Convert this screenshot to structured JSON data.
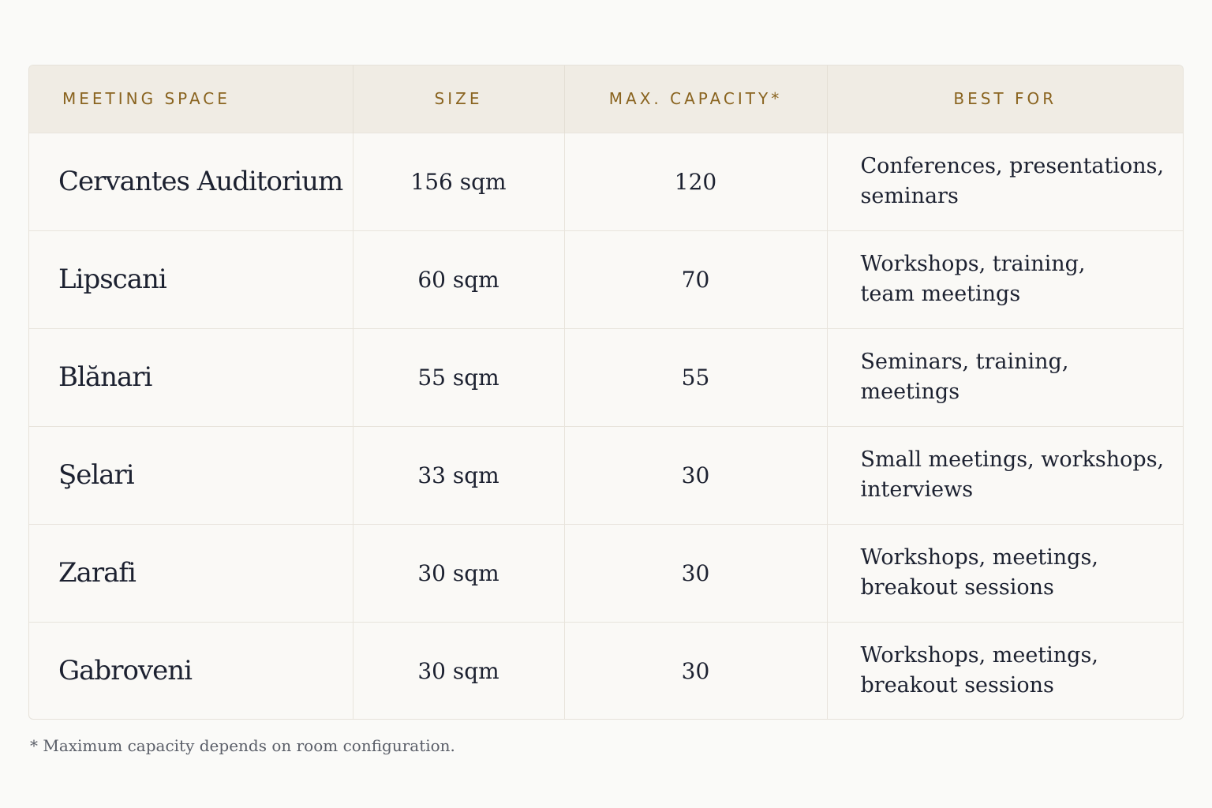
{
  "table": {
    "headers": [
      "MEETING SPACE",
      "SIZE",
      "MAX. CAPACITY*",
      "BEST FOR"
    ],
    "rows": [
      {
        "name": "Cervantes Auditorium",
        "size": "156 sqm",
        "capacity": "120",
        "best_for": [
          "Conferences, presentations,",
          "seminars"
        ]
      },
      {
        "name": "Lipscani",
        "size": "60 sqm",
        "capacity": "70",
        "best_for": [
          "Workshops, training,",
          "team meetings"
        ]
      },
      {
        "name": "Blănari",
        "size": "55 sqm",
        "capacity": "55",
        "best_for": [
          "Seminars, training,",
          "meetings"
        ]
      },
      {
        "name": "Şelari",
        "size": "33 sqm",
        "capacity": "30",
        "best_for": [
          "Small meetings, workshops,",
          "interviews"
        ]
      },
      {
        "name": "Zarafi",
        "size": "30 sqm",
        "capacity": "30",
        "best_for": [
          "Workshops, meetings,",
          "breakout sessions"
        ]
      },
      {
        "name": "Gabroveni",
        "size": "30 sqm",
        "capacity": "30",
        "best_for": [
          "Workshops, meetings,",
          "breakout sessions"
        ]
      }
    ]
  },
  "footnote": "* Maximum capacity depends on room configuration.",
  "colors": {
    "background": "#fafaf8",
    "header_background": "#f0ece4",
    "header_text": "#8a6420",
    "body_text": "#1c2130"
  }
}
